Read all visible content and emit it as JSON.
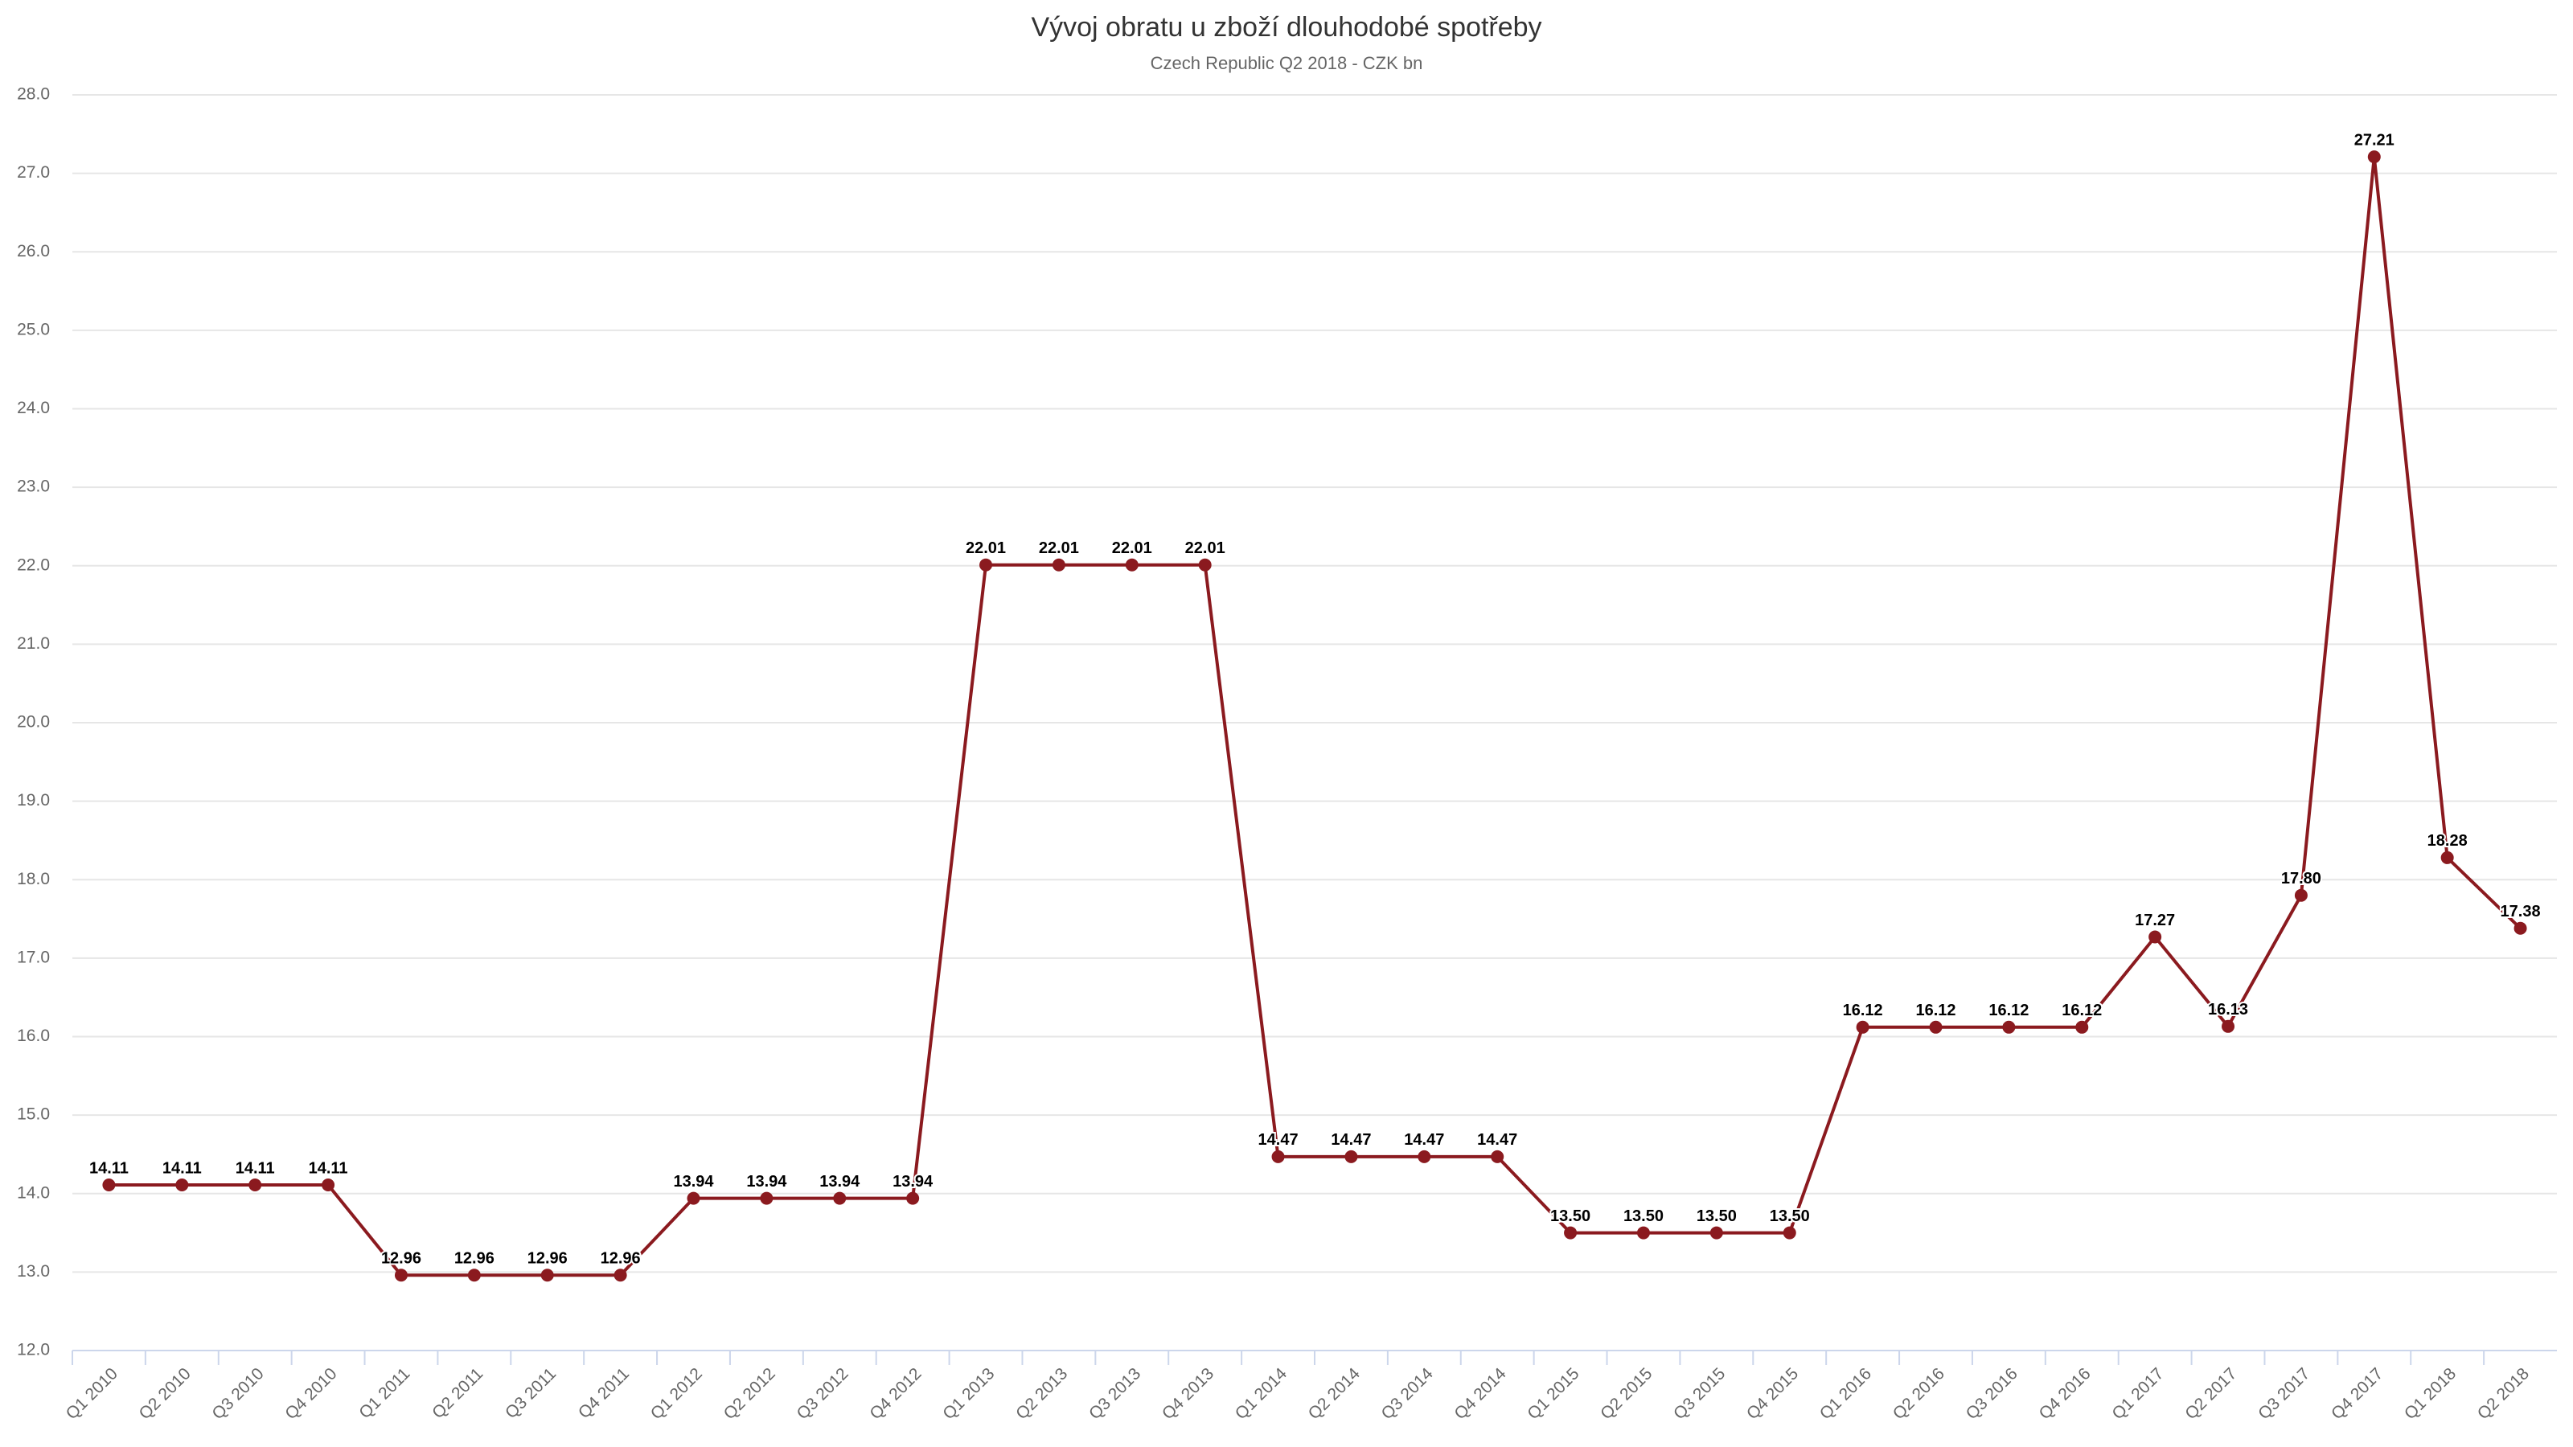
{
  "chart_data": {
    "type": "line",
    "title": "Vývoj obratu u zboží dlouhodobé spotřeby",
    "subtitle": "Czech Republic Q2 2018 - CZK bn",
    "categories": [
      "Q1 2010",
      "Q2 2010",
      "Q3 2010",
      "Q4 2010",
      "Q1 2011",
      "Q2 2011",
      "Q3 2011",
      "Q4 2011",
      "Q1 2012",
      "Q2 2012",
      "Q3 2012",
      "Q4 2012",
      "Q1 2013",
      "Q2 2013",
      "Q3 2013",
      "Q4 2013",
      "Q1 2014",
      "Q2 2014",
      "Q3 2014",
      "Q4 2014",
      "Q1 2015",
      "Q2 2015",
      "Q3 2015",
      "Q4 2015",
      "Q1 2016",
      "Q2 2016",
      "Q3 2016",
      "Q4 2016",
      "Q1 2017",
      "Q2 2017",
      "Q3 2017",
      "Q4 2017",
      "Q1 2018",
      "Q2 2018"
    ],
    "values": [
      14.11,
      14.11,
      14.11,
      14.11,
      12.96,
      12.96,
      12.96,
      12.96,
      13.94,
      13.94,
      13.94,
      13.94,
      22.01,
      22.01,
      22.01,
      22.01,
      14.47,
      14.47,
      14.47,
      14.47,
      13.5,
      13.5,
      13.5,
      13.5,
      16.12,
      16.12,
      16.12,
      16.12,
      17.27,
      16.13,
      17.8,
      27.21,
      18.28,
      17.38
    ],
    "value_labels": [
      "14.11",
      "14.11",
      "14.11",
      "14.11",
      "12.96",
      "12.96",
      "12.96",
      "12.96",
      "13.94",
      "13.94",
      "13.94",
      "13.94",
      "22.01",
      "22.01",
      "22.01",
      "22.01",
      "14.47",
      "14.47",
      "14.47",
      "14.47",
      "13.50",
      "13.50",
      "13.50",
      "13.50",
      "16.12",
      "16.12",
      "16.12",
      "16.12",
      "17.27",
      "16.13",
      "17.80",
      "27.21",
      "18.28",
      "17.38"
    ],
    "color": "#8b1a1f",
    "ylim": [
      12,
      28
    ],
    "yticks": [
      {
        "value": 12,
        "label": "12.0"
      },
      {
        "value": 13,
        "label": "13.0"
      },
      {
        "value": 14,
        "label": "14.0"
      },
      {
        "value": 15,
        "label": "15.0"
      },
      {
        "value": 16,
        "label": "16.0"
      },
      {
        "value": 17,
        "label": "17.0"
      },
      {
        "value": 18,
        "label": "18.0"
      },
      {
        "value": 19,
        "label": "19.0"
      },
      {
        "value": 20,
        "label": "20.0"
      },
      {
        "value": 21,
        "label": "21.0"
      },
      {
        "value": 22,
        "label": "22.0"
      },
      {
        "value": 23,
        "label": "23.0"
      },
      {
        "value": 24,
        "label": "24.0"
      },
      {
        "value": 25,
        "label": "25.0"
      },
      {
        "value": 26,
        "label": "26.0"
      },
      {
        "value": 27,
        "label": "27.0"
      },
      {
        "value": 28,
        "label": "28.0"
      }
    ],
    "grid": true
  }
}
